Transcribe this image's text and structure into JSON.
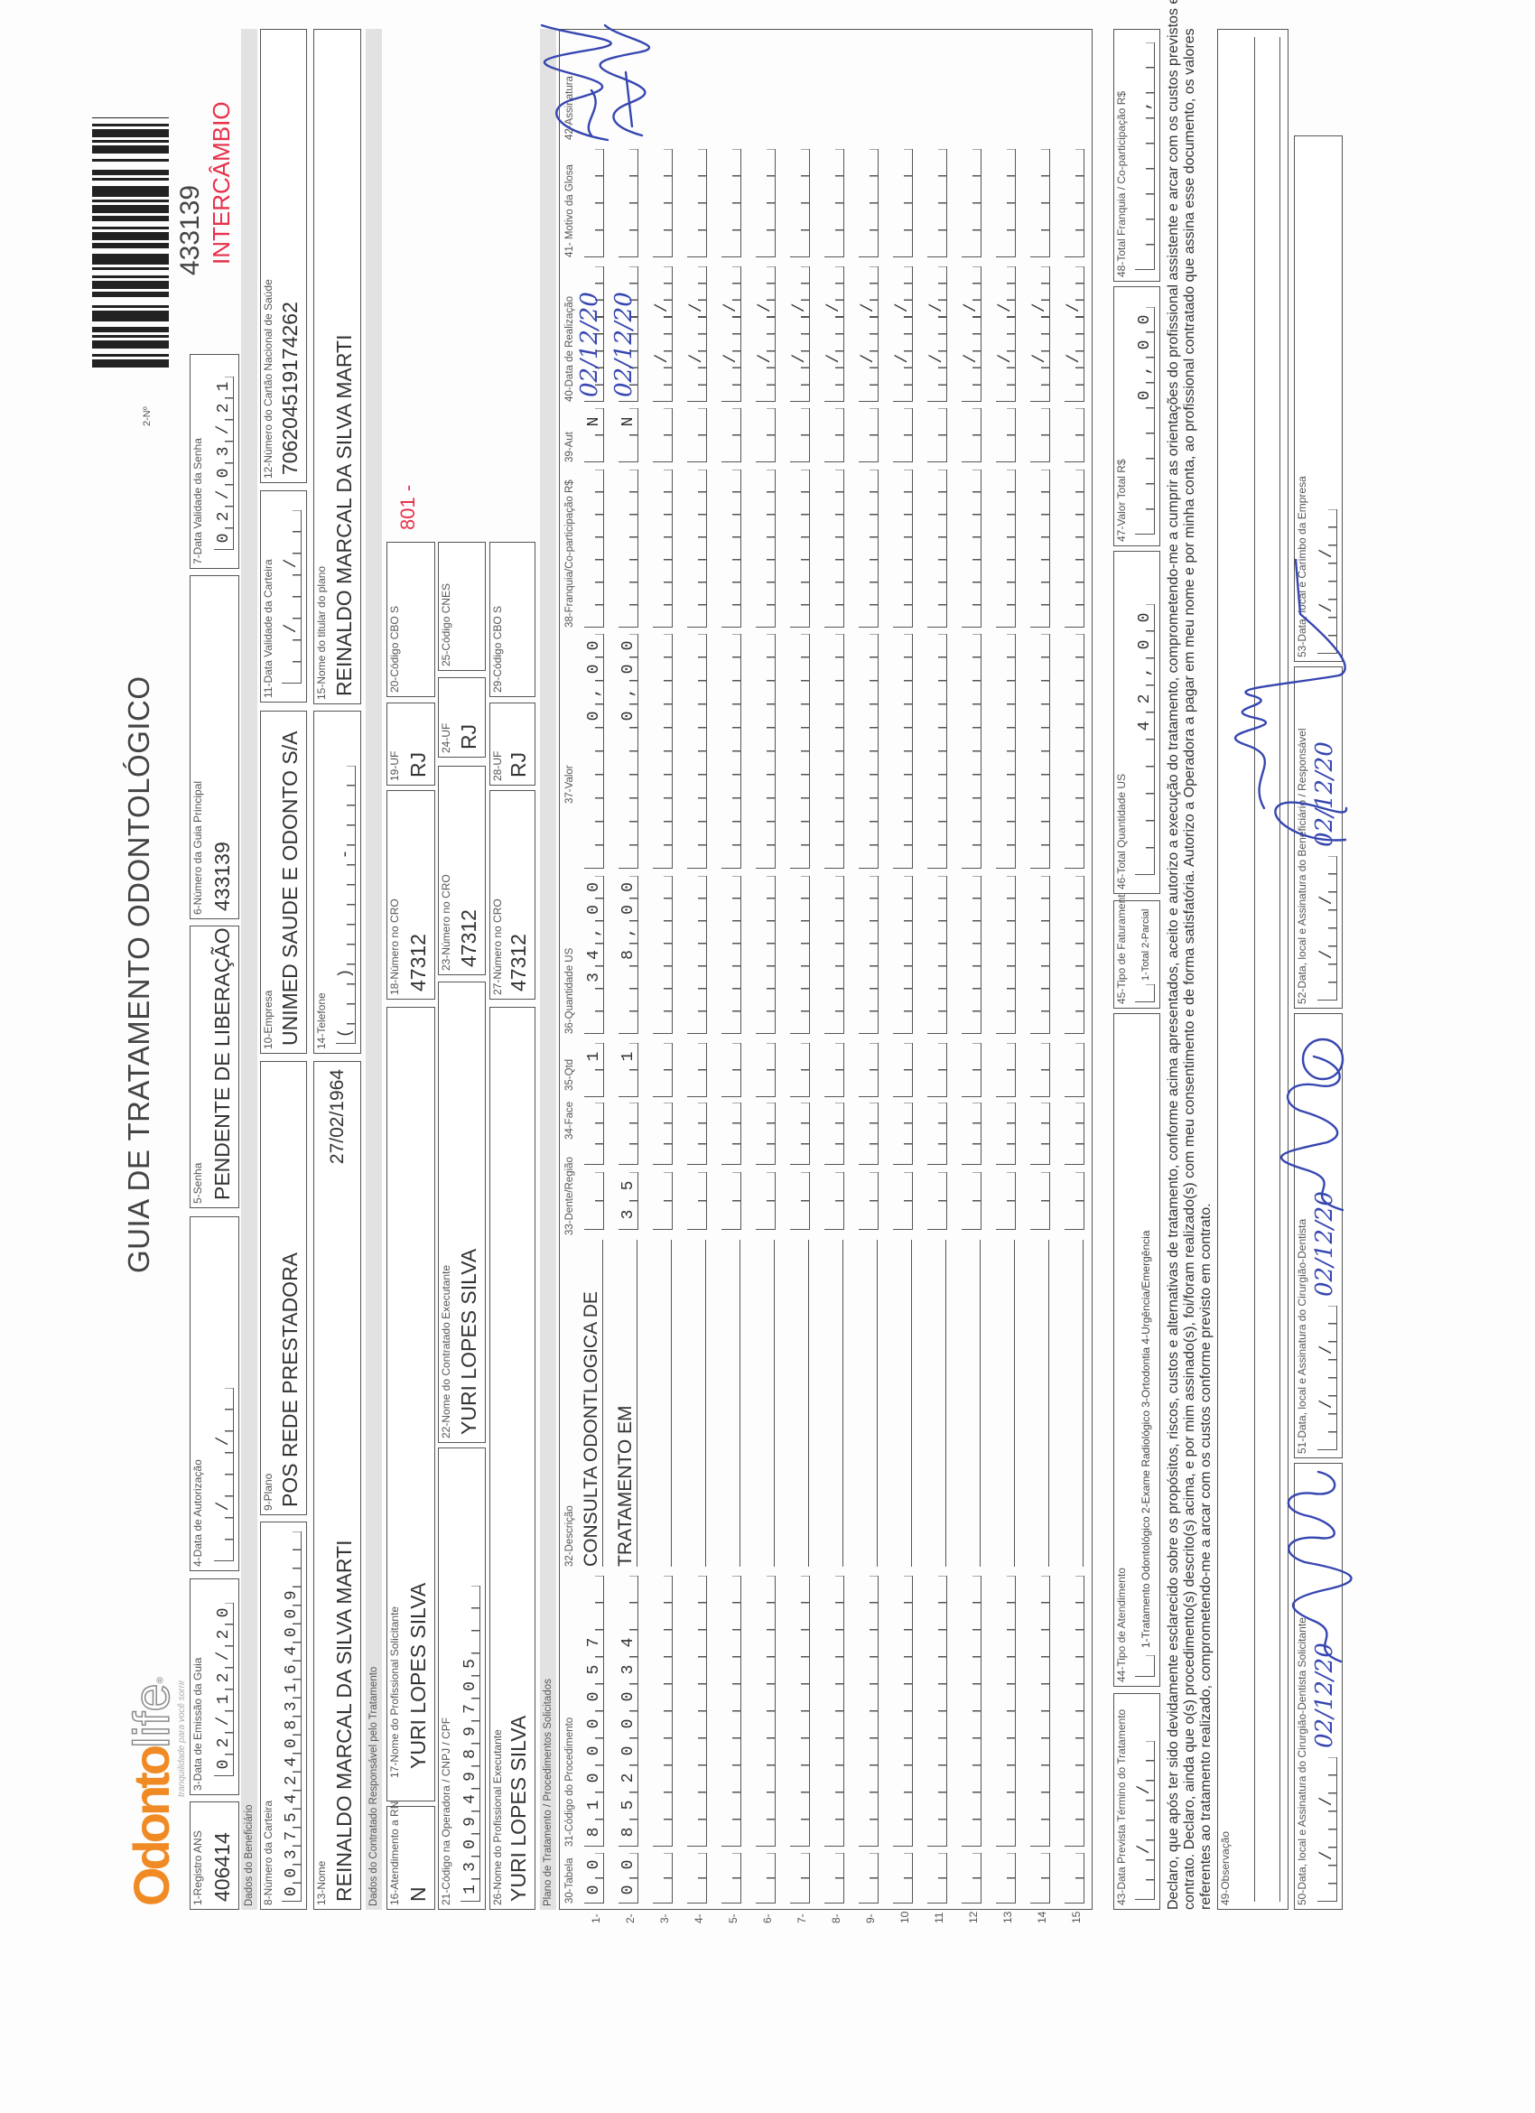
{
  "header": {
    "logo_part1": "Odonto",
    "logo_part2": "life",
    "logo_mark": "®",
    "tagline": "tranquilidade para você sorrir",
    "title": "GUIA DE TRATAMENTO ODONTOLÓGICO",
    "numero_label": "2-Nº",
    "guide_number": "433139",
    "intercambio": "INTERCÂMBIO"
  },
  "sections": {
    "beneficiario": "Dados do Beneficiário",
    "contratado": "Dados do Contratado Responsável pelo Tratamento",
    "plano": "Plano de Tratamento / Procedimentos Solicitados"
  },
  "fields": {
    "f1": {
      "label": "1-Registro ANS",
      "value": "406414"
    },
    "f3": {
      "label": "3-Data de Emissão da Guia",
      "value": "02/12/20"
    },
    "f4": {
      "label": "4-Data de Autorização",
      "value": "  /  /  "
    },
    "f5": {
      "label": "5-Senha",
      "value": "PENDENTE DE LIBERAÇÃO"
    },
    "f6": {
      "label": "6-Número da Guia Principal",
      "value": "433139"
    },
    "f7": {
      "label": "7-Data Validade da Senha",
      "value": "02/03/21"
    },
    "f8": {
      "label": "8-Número da Carteira",
      "value": "00375424083164009"
    },
    "f9": {
      "label": "9-Plano",
      "value": "POS REDE PRESTADORA"
    },
    "f10": {
      "label": "10-Empresa",
      "value": "UNIMED SAUDE E ODONTO S/A"
    },
    "f11": {
      "label": "11-Data Validade da Carteira",
      "value": "  /  /  "
    },
    "f12": {
      "label": "12-Número do Cartão Nacional de Saúde",
      "value": "706204519174262"
    },
    "f13": {
      "label": "13-Nome",
      "value": "REINALDO MARCAL DA SILVA MARTI",
      "birth_date": "27/02/1964"
    },
    "f14": {
      "label": "14-Telefone",
      "value": "(  )     -    "
    },
    "f15": {
      "label": "15-Nome do titular do plano",
      "value": "REINALDO MARCAL DA SILVA MARTI"
    },
    "f16": {
      "label": "16-Atendimento a RN",
      "value": "N"
    },
    "f17": {
      "label": "17-Nome do Profissional Solicitante",
      "value": "YURI LOPES SILVA"
    },
    "f18": {
      "label": "18-Número no CRO",
      "value": "47312"
    },
    "f19": {
      "label": "19-UF",
      "value": "RJ"
    },
    "f20": {
      "label": "20-Código CBO S",
      "value": ""
    },
    "f20_note": "801 -",
    "f21": {
      "label": "21-Código na Operadora / CNPJ / CPF",
      "value": "13094989705"
    },
    "f22": {
      "label": "22-Nome do Contratado Executante",
      "value": "YURI LOPES SILVA"
    },
    "f23": {
      "label": "23-Número no CRO",
      "value": "47312"
    },
    "f24": {
      "label": "24-UF",
      "value": "RJ"
    },
    "f25": {
      "label": "25-Código CNES",
      "value": ""
    },
    "f26": {
      "label": "26-Nome do Profissional Executante",
      "value": "YURI LOPES SILVA"
    },
    "f27": {
      "label": "27-Número no CRO",
      "value": "47312"
    },
    "f28": {
      "label": "28-UF",
      "value": "RJ"
    },
    "f29": {
      "label": "29-Código CBO S",
      "value": ""
    },
    "f43": {
      "label": "43-Data Prevista Término do Tratamento",
      "value": "  /  /  "
    },
    "f44": {
      "label": "44-Tipo de Atendimento",
      "options": "1-Tratamento Odontológico  2-Exame Radiológico  3-Ortodontia  4-Urgência/Emergência"
    },
    "f45": {
      "label": "45-Tipo de Faturamento",
      "options": "1-Total  2-Parcial"
    },
    "f46": {
      "label": "46-Total Quantidade US",
      "value": "42,00"
    },
    "f47": {
      "label": "47-Valor Total R$",
      "value": "0,00"
    },
    "f48": {
      "label": "48-Total Franquia / Co-participação R$",
      "value": ","
    },
    "f49": {
      "label": "49-Observação",
      "value": ""
    },
    "f50": {
      "label": "50-Data, local e Assinatura do Cirurgião-Dentista Solicitante",
      "mask": "  /  /  ",
      "handwritten_date": "02/12/20"
    },
    "f51": {
      "label": "51-Data, local e Assinatura do Cirurgião-Dentista",
      "mask": "  /  /  ",
      "handwritten_date": "02/12/20"
    },
    "f52": {
      "label": "52-Data, local e Assinatura do Beneficiário / Responsável",
      "mask": "  /  /  ",
      "handwritten_date": "02/12/20"
    },
    "f53": {
      "label": "53-Data, local e Carimbo da Empresa",
      "mask": "  /  /  "
    }
  },
  "table": {
    "columns": [
      "30-Tabela",
      "31-Código do Procedimento",
      "32-Descrição",
      "33-Dente/Região",
      "34-Face",
      "35-Qtd",
      "36-Quantidade US",
      "37-Valor",
      "38-Franquia/Co-participação R$",
      "39-Aut",
      "40-Data de Realização",
      "41- Motivo da Glosa",
      "42-Assinatura"
    ],
    "date_mask": "  /  /  ",
    "rows": [
      {
        "num": "1-",
        "tabela": "00",
        "codigo": "81000057",
        "descricao": "CONSULTA ODONTLOGICA DE",
        "dente": "",
        "face": "",
        "qtd": "1",
        "quantidade_us": "34,00",
        "valor": "0,00",
        "franquia": "",
        "aut": "N",
        "data_realizacao": "02/12/20",
        "motivo_glosa": "",
        "signed": true
      },
      {
        "num": "2-",
        "tabela": "00",
        "codigo": "85200034",
        "descricao": "TRATAMENTO EM",
        "dente": "35",
        "face": "",
        "qtd": "1",
        "quantidade_us": "8,00",
        "valor": "0,00",
        "franquia": "",
        "aut": "N",
        "data_realizacao": "02/12/20",
        "motivo_glosa": "",
        "signed": true
      },
      {
        "num": "3-"
      },
      {
        "num": "4-"
      },
      {
        "num": "5-"
      },
      {
        "num": "6-"
      },
      {
        "num": "7-"
      },
      {
        "num": "8-"
      },
      {
        "num": "9-"
      },
      {
        "num": "10"
      },
      {
        "num": "11"
      },
      {
        "num": "12"
      },
      {
        "num": "13"
      },
      {
        "num": "14"
      },
      {
        "num": "15"
      }
    ]
  },
  "declaration": {
    "line1": "Declaro, que após ter sido devidamente esclarecido sobre os propósitos, riscos, custos e alternativas de tratamento, conforme acima apresentados, aceito e autorizo a execução do tratamento, comprometendo-me a cumprir as orientações do profissional assistente e arcar com os custos previstos em",
    "line2": "contrato. Declaro, ainda que o(s) procedimento(s) descrito(s) acima, e por mim assinado(s), foi/foram realizado(s) com meu consentimento e de forma satisfatória. Autorizo a Operadora a pagar em meu nome e por minha conta, ao profissional contratado que assina esse documento, os valores",
    "line3": "referentes ao tratamento realizado, comprometendo-me a arcar com os custos conforme previsto em contrato."
  },
  "colors": {
    "brand_orange": "#f08a24",
    "logo_gray": "#8a8a8a",
    "stamp_red": "#e8304a",
    "ink_blue": "#3646b0",
    "band_gray": "#e2e2e2",
    "line": "#555555"
  }
}
